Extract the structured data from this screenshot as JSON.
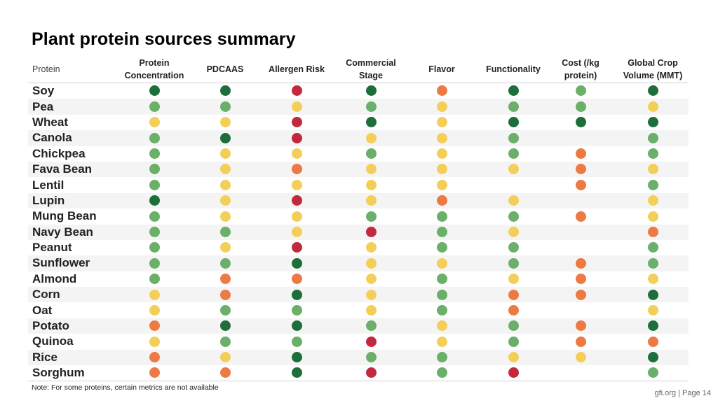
{
  "title": "Plant protein sources summary",
  "header": {
    "protein": "Protein",
    "columns": [
      [
        "Protein",
        "Concentration"
      ],
      [
        "PDCAAS"
      ],
      [
        "Allergen Risk"
      ],
      [
        "Commercial",
        "Stage"
      ],
      [
        "Flavor"
      ],
      [
        "Functionality"
      ],
      [
        "Cost (/kg",
        "protein)"
      ],
      [
        "Global Crop",
        "Volume (MMT)"
      ]
    ]
  },
  "colors": {
    "dg": "#1e6e3a",
    "lg": "#6aaf6a",
    "y": "#f3cf5a",
    "o": "#ec7a43",
    "r": "#c2293f"
  },
  "rows": [
    {
      "name": "Soy",
      "ratings": [
        "dg",
        "dg",
        "r",
        "dg",
        "o",
        "dg",
        "lg",
        "dg"
      ]
    },
    {
      "name": "Pea",
      "ratings": [
        "lg",
        "lg",
        "y",
        "lg",
        "y",
        "lg",
        "lg",
        "y"
      ]
    },
    {
      "name": "Wheat",
      "ratings": [
        "y",
        "y",
        "r",
        "dg",
        "y",
        "dg",
        "dg",
        "dg"
      ]
    },
    {
      "name": "Canola",
      "ratings": [
        "lg",
        "dg",
        "r",
        "y",
        "y",
        "lg",
        "",
        "lg"
      ]
    },
    {
      "name": "Chickpea",
      "ratings": [
        "lg",
        "y",
        "y",
        "lg",
        "y",
        "lg",
        "o",
        "lg"
      ]
    },
    {
      "name": "Fava Bean",
      "ratings": [
        "lg",
        "y",
        "o",
        "y",
        "y",
        "y",
        "o",
        "y"
      ]
    },
    {
      "name": "Lentil",
      "ratings": [
        "lg",
        "y",
        "y",
        "y",
        "y",
        "",
        "o",
        "lg"
      ]
    },
    {
      "name": "Lupin",
      "ratings": [
        "dg",
        "y",
        "r",
        "y",
        "o",
        "y",
        "",
        "y"
      ]
    },
    {
      "name": "Mung Bean",
      "ratings": [
        "lg",
        "y",
        "y",
        "lg",
        "lg",
        "lg",
        "o",
        "y"
      ]
    },
    {
      "name": "Navy Bean",
      "ratings": [
        "lg",
        "lg",
        "y",
        "r",
        "lg",
        "y",
        "",
        "o"
      ]
    },
    {
      "name": "Peanut",
      "ratings": [
        "lg",
        "y",
        "r",
        "y",
        "lg",
        "lg",
        "",
        "lg"
      ]
    },
    {
      "name": "Sunflower",
      "ratings": [
        "lg",
        "lg",
        "dg",
        "y",
        "y",
        "lg",
        "o",
        "lg"
      ]
    },
    {
      "name": "Almond",
      "ratings": [
        "lg",
        "o",
        "o",
        "y",
        "lg",
        "y",
        "o",
        "y"
      ]
    },
    {
      "name": "Corn",
      "ratings": [
        "y",
        "o",
        "dg",
        "y",
        "lg",
        "o",
        "o",
        "dg"
      ]
    },
    {
      "name": "Oat",
      "ratings": [
        "y",
        "lg",
        "lg",
        "y",
        "lg",
        "o",
        "",
        "y"
      ]
    },
    {
      "name": "Potato",
      "ratings": [
        "o",
        "dg",
        "dg",
        "lg",
        "y",
        "lg",
        "o",
        "dg"
      ]
    },
    {
      "name": "Quinoa",
      "ratings": [
        "y",
        "lg",
        "lg",
        "r",
        "y",
        "lg",
        "o",
        "o"
      ]
    },
    {
      "name": "Rice",
      "ratings": [
        "o",
        "y",
        "dg",
        "lg",
        "lg",
        "y",
        "y",
        "dg"
      ]
    },
    {
      "name": "Sorghum",
      "ratings": [
        "o",
        "o",
        "dg",
        "r",
        "lg",
        "r",
        "",
        "lg"
      ]
    }
  ],
  "note": "Note: For some proteins, certain metrics are not available",
  "footer": "gfi.org | Page 14"
}
